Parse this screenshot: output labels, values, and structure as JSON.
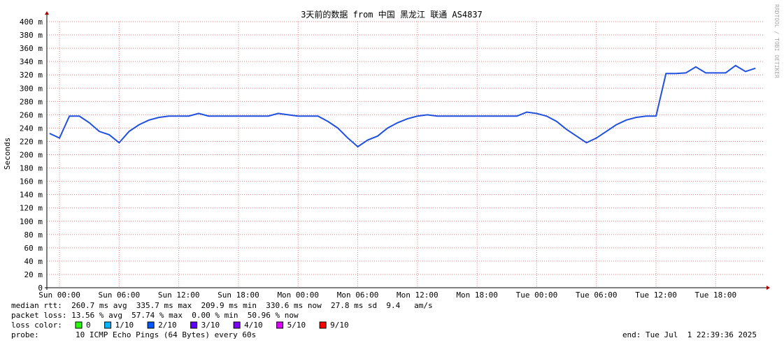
{
  "chart_data": {
    "type": "line",
    "title": "3天前的数据 from 中国 黑龙江 联通 AS4837",
    "y_label": "Seconds",
    "watermark": "RRDTOOL / TOBI OETIKER",
    "x": [
      -1,
      0,
      1,
      2,
      3,
      4,
      5,
      6,
      7,
      8,
      9,
      10,
      11,
      12,
      13,
      14,
      15,
      16,
      17,
      18,
      19,
      20,
      21,
      22,
      23,
      24,
      25,
      26,
      27,
      28,
      29,
      30,
      31,
      32,
      33,
      34,
      35,
      36,
      37,
      38,
      39,
      40,
      41,
      42,
      43,
      44,
      45,
      46,
      47,
      48,
      49,
      50,
      51,
      52,
      53,
      54,
      55,
      56,
      57,
      58,
      59,
      60,
      61,
      62,
      63,
      64,
      65,
      66,
      67,
      68,
      69,
      70
    ],
    "series": [
      {
        "color": "#2050e0",
        "values": [
          232,
          225,
          258,
          258,
          248,
          235,
          230,
          218,
          235,
          245,
          252,
          256,
          258,
          258,
          258,
          262,
          258,
          258,
          258,
          258,
          258,
          258,
          258,
          262,
          260,
          258,
          258,
          258,
          250,
          240,
          225,
          212,
          222,
          228,
          240,
          248,
          254,
          258,
          260,
          258,
          258,
          258,
          258,
          258,
          258,
          258,
          258,
          258,
          264,
          262,
          258,
          250,
          238,
          228,
          218,
          225,
          235,
          245,
          252,
          256,
          258,
          258,
          322,
          322,
          323,
          332,
          323,
          323,
          323,
          334,
          325,
          330
        ]
      }
    ],
    "xlim": [
      -1.27,
      70.9
    ],
    "xticks": [
      {
        "value": 0,
        "label": "Sun 00:00"
      },
      {
        "value": 6,
        "label": "Sun 06:00"
      },
      {
        "value": 12,
        "label": "Sun 12:00"
      },
      {
        "value": 18,
        "label": "Sun 18:00"
      },
      {
        "value": 24,
        "label": "Mon 00:00"
      },
      {
        "value": 30,
        "label": "Mon 06:00"
      },
      {
        "value": 36,
        "label": "Mon 12:00"
      },
      {
        "value": 42,
        "label": "Mon 18:00"
      },
      {
        "value": 48,
        "label": "Tue 00:00"
      },
      {
        "value": 54,
        "label": "Tue 06:00"
      },
      {
        "value": 60,
        "label": "Tue 12:00"
      },
      {
        "value": 66,
        "label": "Tue 18:00"
      }
    ],
    "ylim": [
      0,
      400
    ],
    "yticks": [
      0,
      {
        "value": 20,
        "label": "20 m"
      },
      {
        "value": 40,
        "label": "40 m"
      },
      {
        "value": 60,
        "label": "60 m"
      },
      {
        "value": 80,
        "label": "80 m"
      },
      {
        "value": 100,
        "label": "100 m"
      },
      {
        "value": 120,
        "label": "120 m"
      },
      {
        "value": 140,
        "label": "140 m"
      },
      {
        "value": 160,
        "label": "160 m"
      },
      {
        "value": 180,
        "label": "180 m"
      },
      {
        "value": 200,
        "label": "200 m"
      },
      {
        "value": 220,
        "label": "220 m"
      },
      {
        "value": 240,
        "label": "240 m"
      },
      {
        "value": 260,
        "label": "260 m"
      },
      {
        "value": 280,
        "label": "280 m"
      },
      {
        "value": 300,
        "label": "300 m"
      },
      {
        "value": 320,
        "label": "320 m"
      },
      {
        "value": 340,
        "label": "340 m"
      },
      {
        "value": 360,
        "label": "360 m"
      },
      {
        "value": 380,
        "label": "380 m"
      },
      {
        "value": 400,
        "label": "400 m"
      }
    ],
    "grid": true,
    "legend_lines": [
      "median rtt:  260.7 ms avg  335.7 ms max  209.9 ms min  330.6 ms now  27.8 ms sd  9.4   am/s",
      "packet loss: 13.56 % avg  57.74 % max  0.00 % min  50.96 % now"
    ],
    "loss_title": "loss color:",
    "loss_colors": [
      {
        "label": "0",
        "color": "#26ff00"
      },
      {
        "label": "1/10",
        "color": "#00b8ff"
      },
      {
        "label": "2/10",
        "color": "#0059ff"
      },
      {
        "label": "3/10",
        "color": "#5e00ff"
      },
      {
        "label": "4/10",
        "color": "#7e00ff"
      },
      {
        "label": "5/10",
        "color": "#dd00ff"
      },
      {
        "label": "9/10",
        "color": "#ff0000"
      }
    ],
    "probe_title": "probe:",
    "probe": "10 ICMP Echo Pings (64 Bytes) every 60s",
    "end": "end: Tue Jul  1 22:39:36 2025"
  }
}
